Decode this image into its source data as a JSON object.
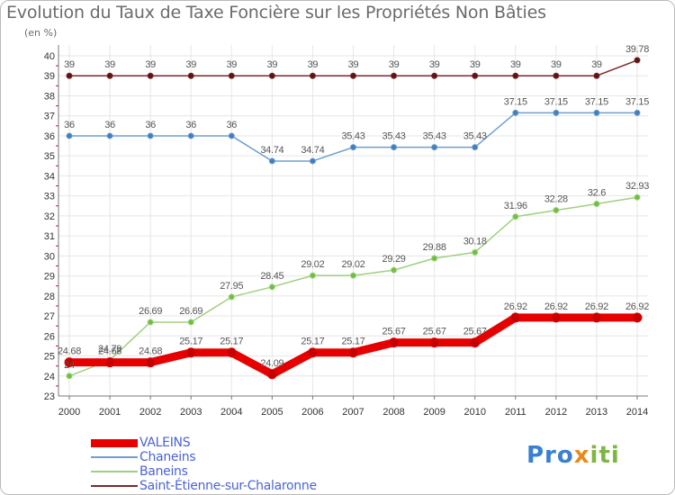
{
  "title": "Evolution du Taux de Taxe Foncière sur les Propriétés Non Bâties",
  "unit": "(en %)",
  "logo": "Proxiti",
  "colors": {
    "grid": "#e6e6e6",
    "axis": "#7a7a7a",
    "tick_text": "#333333",
    "label_text": "#555555",
    "minor_tick": "#e20000"
  },
  "chart_data": {
    "type": "line",
    "title": "Evolution du Taux de Taxe Foncière sur les Propriétés Non Bâties",
    "ylabel": "(en %)",
    "xlabel": "",
    "x": [
      "2000",
      "2001",
      "2002",
      "2003",
      "2004",
      "2005",
      "2006",
      "2007",
      "2008",
      "2009",
      "2010",
      "2011",
      "2012",
      "2013",
      "2014"
    ],
    "ylim": [
      23,
      40
    ],
    "yticks": [
      23,
      24,
      25,
      26,
      27,
      28,
      29,
      30,
      31,
      32,
      33,
      34,
      35,
      36,
      37,
      38,
      39,
      40
    ],
    "grid": true,
    "legend_position": "bottom-left",
    "series": [
      {
        "name": "VALEINS",
        "color": "#e60000",
        "point_color": "#c40000",
        "width": 9,
        "values": [
          24.68,
          24.68,
          24.68,
          25.17,
          25.17,
          24.09,
          25.17,
          25.17,
          25.67,
          25.67,
          25.67,
          26.92,
          26.92,
          26.92,
          26.92
        ],
        "labels": [
          "24.68",
          "24.68",
          "24.68",
          "25.17",
          "25.17",
          "24.09",
          "25.17",
          "25.17",
          "25.67",
          "25.67",
          "25.67",
          "26.92",
          "26.92",
          "26.92",
          "26.92"
        ]
      },
      {
        "name": "Chaneins",
        "color": "#6f9fd0",
        "point_color": "#3f7fc0",
        "width": 1.5,
        "values": [
          36,
          36,
          36,
          36,
          36,
          34.74,
          34.74,
          35.43,
          35.43,
          35.43,
          35.43,
          37.15,
          37.15,
          37.15,
          37.15
        ],
        "labels": [
          "36",
          "36",
          "36",
          "36",
          "36",
          "34.74",
          "34.74",
          "35.43",
          "35.43",
          "35.43",
          "35.43",
          "37.15",
          "37.15",
          "37.15",
          "37.15"
        ]
      },
      {
        "name": "Baneins",
        "color": "#9fd07f",
        "point_color": "#6fbf3f",
        "width": 1.5,
        "values": [
          24,
          24.79,
          26.69,
          26.69,
          27.95,
          28.45,
          29.02,
          29.02,
          29.29,
          29.88,
          30.18,
          31.96,
          32.28,
          32.6,
          32.93
        ],
        "labels": [
          "24",
          "24.79",
          "26.69",
          "26.69",
          "27.95",
          "28.45",
          "29.02",
          "29.02",
          "29.29",
          "29.88",
          "30.18",
          "31.96",
          "32.28",
          "32.6",
          "32.93"
        ]
      },
      {
        "name": "Saint-Étienne-sur-Chalaronne",
        "color": "#7a2a2a",
        "point_color": "#5a1414",
        "width": 1.5,
        "values": [
          39,
          39,
          39,
          39,
          39,
          39,
          39,
          39,
          39,
          39,
          39,
          39,
          39,
          39,
          39.78
        ],
        "labels": [
          "39",
          "39",
          "39",
          "39",
          "39",
          "39",
          "39",
          "39",
          "39",
          "39",
          "39",
          "39",
          "39",
          "39",
          "39.78"
        ]
      }
    ]
  }
}
